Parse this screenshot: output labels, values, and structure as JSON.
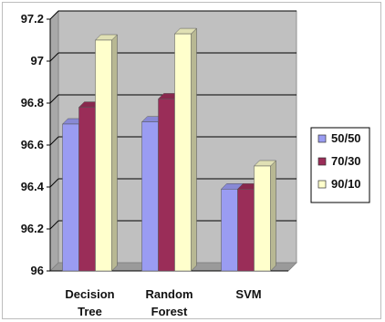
{
  "chart_data": {
    "type": "bar",
    "categories": [
      "Decision Tree",
      "Random Forest",
      "SVM"
    ],
    "category_lines": [
      [
        "Decision",
        "Tree"
      ],
      [
        "Random",
        "Forest"
      ],
      [
        "SVM"
      ]
    ],
    "series": [
      {
        "name": "50/50",
        "values": [
          96.7,
          96.71,
          96.39
        ],
        "color": "#9a9cf2"
      },
      {
        "name": "70/30",
        "values": [
          96.78,
          96.82,
          96.39
        ],
        "color": "#9a2d58"
      },
      {
        "name": "90/10",
        "values": [
          97.1,
          97.13,
          96.5
        ],
        "color": "#ffffcc"
      }
    ],
    "ylim": [
      96,
      97.2
    ],
    "yticks": [
      "96",
      "96.2",
      "96.4",
      "96.6",
      "96.8",
      "97",
      "97.2"
    ],
    "grid": true,
    "legend_position": "right",
    "plot_background": "#c0c0c0",
    "title": "",
    "xlabel": "",
    "ylabel": ""
  }
}
